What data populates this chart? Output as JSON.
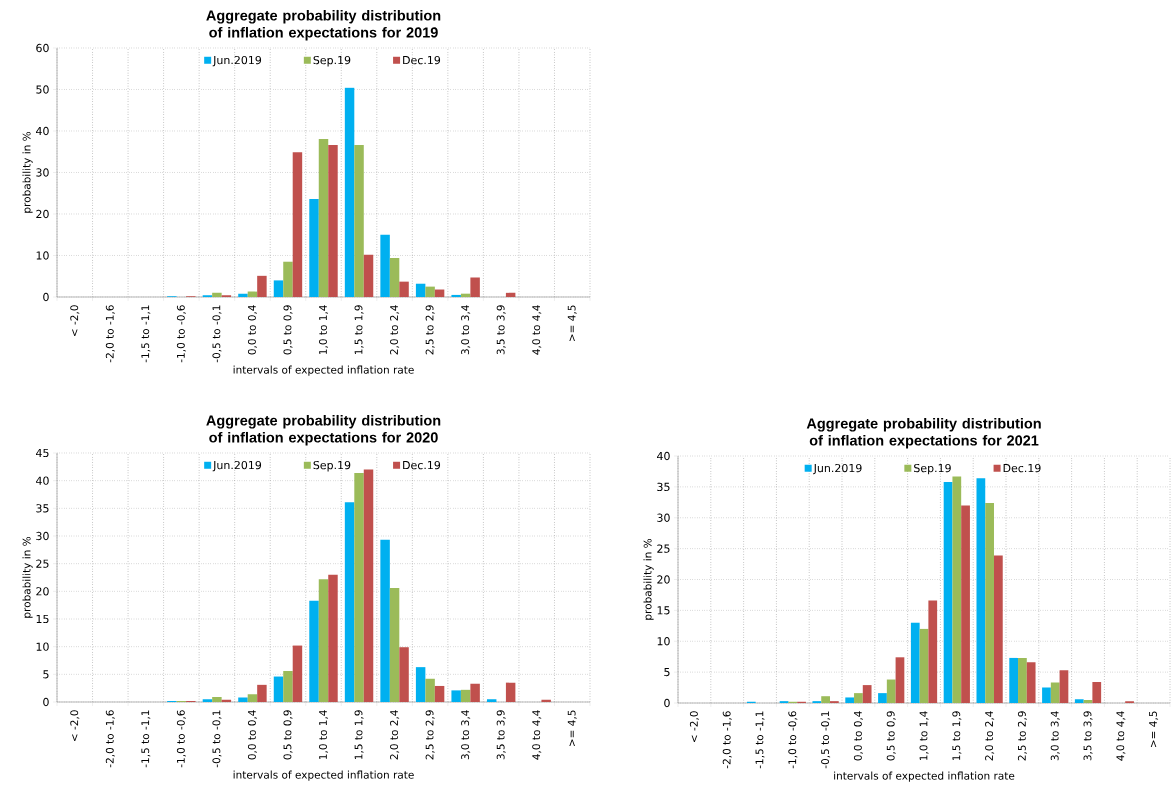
{
  "chart_data": [
    {
      "type": "bar",
      "title": "Aggregate probability distribution of inflation expectations for 2019",
      "xlabel": "intervals of expected inflation rate",
      "ylabel": "probability in %",
      "categories": [
        "< -2,0",
        "-2,0 to -1,6",
        "-1,5 to -1,1",
        "-1,0 to -0,6",
        "-0,5 to -0,1",
        "0,0 to 0,4",
        "0,5 to 0,9",
        "1,0 to 1,4",
        "1,5 to 1,9",
        "2,0 to 2,4",
        "2,5 to 2,9",
        "3,0 to 3,4",
        "3,5 to 3,9",
        "4,0 to 4,4",
        ">= 4,5"
      ],
      "series": [
        {
          "name": "Jun.2019",
          "color": "#00b0f0",
          "values": [
            0,
            0,
            0,
            0.2,
            0.4,
            0.8,
            4.0,
            23.6,
            50.4,
            15.0,
            3.2,
            0.5,
            0,
            0,
            0
          ]
        },
        {
          "name": "Sep.19",
          "color": "#9bbb59",
          "values": [
            0,
            0,
            0,
            0,
            1.0,
            1.3,
            8.5,
            38.1,
            36.6,
            9.4,
            2.5,
            0.8,
            0,
            0,
            0
          ]
        },
        {
          "name": "Dec.19",
          "color": "#c0504d",
          "values": [
            0,
            0,
            0,
            0.2,
            0.4,
            5.1,
            34.9,
            36.6,
            10.2,
            3.7,
            1.8,
            4.7,
            1.0,
            0,
            0
          ]
        }
      ],
      "ylim": [
        0,
        60
      ],
      "yticks": [
        0,
        10,
        20,
        30,
        40,
        50,
        60
      ],
      "grid": true,
      "legend": "top"
    },
    {
      "type": "bar",
      "title": "Aggregate probability distribution of inflation expectations for 2020",
      "xlabel": "intervals of expected inflation rate",
      "ylabel": "probability in %",
      "categories": [
        "< -2,0",
        "-2,0 to -1,6",
        "-1,5 to -1,1",
        "-1,0 to -0,6",
        "-0,5 to -0,1",
        "0,0 to 0,4",
        "0,5 to 0,9",
        "1,0 to 1,4",
        "1,5 to 1,9",
        "2,0 to 2,4",
        "2,5 to 2,9",
        "3,0 to 3,4",
        "3,5 to 3,9",
        "4,0 to 4,4",
        ">= 4,5"
      ],
      "series": [
        {
          "name": "Jun.2019",
          "color": "#00b0f0",
          "values": [
            0,
            0,
            0,
            0.2,
            0.5,
            0.8,
            4.6,
            18.3,
            36.1,
            29.3,
            6.3,
            2.1,
            0.5,
            0,
            0
          ]
        },
        {
          "name": "Sep.19",
          "color": "#9bbb59",
          "values": [
            0,
            0,
            0,
            0.2,
            0.9,
            1.4,
            5.6,
            22.2,
            41.4,
            20.6,
            4.2,
            2.2,
            0,
            0,
            0
          ]
        },
        {
          "name": "Dec.19",
          "color": "#c0504d",
          "values": [
            0,
            0,
            0,
            0.2,
            0.4,
            3.1,
            10.2,
            23.0,
            42.0,
            9.9,
            2.9,
            3.3,
            3.5,
            0.4,
            0
          ]
        }
      ],
      "ylim": [
        0,
        45
      ],
      "yticks": [
        0,
        5,
        10,
        15,
        20,
        25,
        30,
        35,
        40,
        45
      ],
      "grid": true,
      "legend": "top"
    },
    {
      "type": "bar",
      "title": "Aggregate probability distribution of inflation expectations for 2021",
      "xlabel": "intervals of expected inflation rate",
      "ylabel": "probability in %",
      "categories": [
        "< -2,0",
        "-2,0 to -1,6",
        "-1,5 to -1,1",
        "-1,0 to -0,6",
        "-0,5 to -0,1",
        "0,0 to 0,4",
        "0,5 to 0,9",
        "1,0 to 1,4",
        "1,5 to 1,9",
        "2,0 to 2,4",
        "2,5 to 2,9",
        "3,0 to 3,4",
        "3,5 to 3,9",
        "4,0 to 4,4",
        ">= 4,5"
      ],
      "series": [
        {
          "name": "Jun.2019",
          "color": "#00b0f0",
          "values": [
            0,
            0,
            0.2,
            0.3,
            0.3,
            0.9,
            1.6,
            13.0,
            35.8,
            36.4,
            7.3,
            2.5,
            0.6,
            0,
            0
          ]
        },
        {
          "name": "Sep.19",
          "color": "#9bbb59",
          "values": [
            0,
            0,
            0,
            0.2,
            1.1,
            1.6,
            3.8,
            12.0,
            36.7,
            32.4,
            7.3,
            3.3,
            0.5,
            0,
            0
          ]
        },
        {
          "name": "Dec.19",
          "color": "#c0504d",
          "values": [
            0,
            0,
            0,
            0.2,
            0.3,
            2.9,
            7.4,
            16.6,
            32.0,
            23.9,
            6.6,
            5.3,
            3.4,
            0.3,
            0
          ]
        }
      ],
      "ylim": [
        0,
        40
      ],
      "yticks": [
        0,
        5,
        10,
        15,
        20,
        25,
        30,
        35,
        40
      ],
      "grid": true,
      "legend": "top"
    }
  ]
}
